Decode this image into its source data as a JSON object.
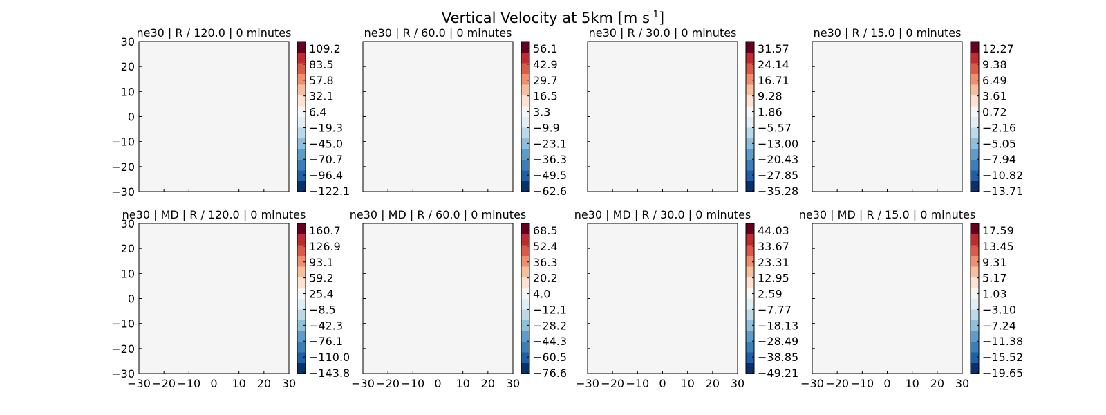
{
  "figure": {
    "title_main": "Vertical Velocity at 5km [m s",
    "title_sup": "-1",
    "title_end": "]"
  },
  "colors": {
    "panel_bg": "#f5f5f5",
    "colormap": [
      "#08306b",
      "#1f5fa8",
      "#3a7fba",
      "#5e9dcb",
      "#8fbfdd",
      "#bcd9ea",
      "#e2eef6",
      "#f8f6f4",
      "#fde2d2",
      "#f7bfa0",
      "#ef8f6c",
      "#db5b4a",
      "#bf2b31",
      "#67001f"
    ]
  },
  "chart_data": [
    {
      "type": "heatmap",
      "title": "ne30 | R / 120.0 | 0 minutes",
      "xlim": [
        -30,
        30
      ],
      "ylim": [
        -30,
        30
      ],
      "x_ticks": [],
      "y_ticks": [
        "30",
        "20",
        "10",
        "0",
        "−10",
        "−20",
        "−30"
      ],
      "colorbar": [
        "109.2",
        "83.5",
        "57.8",
        "32.1",
        "6.4",
        "−19.3",
        "−45.0",
        "−70.7",
        "−96.4",
        "−122.1"
      ]
    },
    {
      "type": "heatmap",
      "title": "ne30 | R / 60.0 | 0 minutes",
      "xlim": [
        -30,
        30
      ],
      "ylim": [
        -30,
        30
      ],
      "x_ticks": [],
      "y_ticks": [],
      "colorbar": [
        "56.1",
        "42.9",
        "29.7",
        "16.5",
        "3.3",
        "−9.9",
        "−23.1",
        "−36.3",
        "−49.5",
        "−62.6"
      ]
    },
    {
      "type": "heatmap",
      "title": "ne30 | R / 30.0 | 0 minutes",
      "xlim": [
        -30,
        30
      ],
      "ylim": [
        -30,
        30
      ],
      "x_ticks": [],
      "y_ticks": [],
      "colorbar": [
        "31.57",
        "24.14",
        "16.71",
        "9.28",
        "1.86",
        "−5.57",
        "−13.00",
        "−20.43",
        "−27.85",
        "−35.28"
      ]
    },
    {
      "type": "heatmap",
      "title": "ne30 | R / 15.0 | 0 minutes",
      "xlim": [
        -30,
        30
      ],
      "ylim": [
        -30,
        30
      ],
      "x_ticks": [],
      "y_ticks": [],
      "colorbar": [
        "12.27",
        "9.38",
        "6.49",
        "3.61",
        "0.72",
        "−2.16",
        "−5.05",
        "−7.94",
        "−10.82",
        "−13.71"
      ]
    },
    {
      "type": "heatmap",
      "title": "ne30 | MD | R / 120.0 | 0 minutes",
      "xlim": [
        -30,
        30
      ],
      "ylim": [
        -30,
        30
      ],
      "x_ticks": [
        "−30",
        "−20",
        "−10",
        "0",
        "10",
        "20",
        "30"
      ],
      "y_ticks": [
        "30",
        "20",
        "10",
        "0",
        "−10",
        "−20",
        "−30"
      ],
      "colorbar": [
        "160.7",
        "126.9",
        "93.1",
        "59.2",
        "25.4",
        "−8.5",
        "−42.3",
        "−76.1",
        "−110.0",
        "−143.8"
      ]
    },
    {
      "type": "heatmap",
      "title": "ne30 | MD | R / 60.0 | 0 minutes",
      "xlim": [
        -30,
        30
      ],
      "ylim": [
        -30,
        30
      ],
      "x_ticks": [
        "−30",
        "−20",
        "−10",
        "0",
        "10",
        "20",
        "30"
      ],
      "y_ticks": [],
      "colorbar": [
        "68.5",
        "52.4",
        "36.3",
        "20.2",
        "4.0",
        "−12.1",
        "−28.2",
        "−44.3",
        "−60.5",
        "−76.6"
      ]
    },
    {
      "type": "heatmap",
      "title": "ne30 | MD | R / 30.0 | 0 minutes",
      "xlim": [
        -30,
        30
      ],
      "ylim": [
        -30,
        30
      ],
      "x_ticks": [
        "−30",
        "−20",
        "−10",
        "0",
        "10",
        "20",
        "30"
      ],
      "y_ticks": [],
      "colorbar": [
        "44.03",
        "33.67",
        "23.31",
        "12.95",
        "2.59",
        "−7.77",
        "−18.13",
        "−28.49",
        "−38.85",
        "−49.21"
      ]
    },
    {
      "type": "heatmap",
      "title": "ne30 | MD | R / 15.0 | 0 minutes",
      "xlim": [
        -30,
        30
      ],
      "ylim": [
        -30,
        30
      ],
      "x_ticks": [
        "−30",
        "−20",
        "−10",
        "0",
        "10",
        "20",
        "30"
      ],
      "y_ticks": [],
      "colorbar": [
        "17.59",
        "13.45",
        "9.31",
        "5.17",
        "1.03",
        "−3.10",
        "−7.24",
        "−11.38",
        "−15.52",
        "−19.65"
      ]
    }
  ]
}
